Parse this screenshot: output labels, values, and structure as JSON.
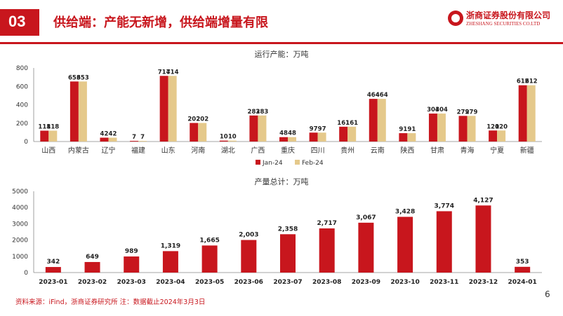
{
  "header": {
    "section_number": "03",
    "title": "供给端：产能无新增，供给端增量有限",
    "logo_cn": "浙商证券股份有限公司",
    "logo_en": "ZHESHANG SECURITIES CO.LTD"
  },
  "colors": {
    "red": "#c8161d",
    "tan": "#e5c98b"
  },
  "chart_data": [
    {
      "type": "bar",
      "title": "运行产能：万吨",
      "categories": [
        "山西",
        "内蒙古",
        "辽宁",
        "福建",
        "山东",
        "河南",
        "湖北",
        "广西",
        "重庆",
        "四川",
        "贵州",
        "云南",
        "陕西",
        "甘肃",
        "青海",
        "宁夏",
        "新疆"
      ],
      "series": [
        {
          "name": "Jan-24",
          "color": "#c8161d",
          "values": [
            118,
            653,
            42,
            7,
            714,
            202,
            10,
            283,
            48,
            97,
            161,
            464,
            91,
            304,
            279,
            120,
            612
          ]
        },
        {
          "name": "Feb-24",
          "color": "#e5c98b",
          "values": [
            118,
            653,
            42,
            7,
            714,
            202,
            10,
            283,
            48,
            97,
            161,
            464,
            91,
            304,
            279,
            120,
            612
          ]
        }
      ],
      "ylim": [
        0,
        800
      ],
      "yticks": [
        0,
        200,
        400,
        600,
        800
      ],
      "legend": "bottom",
      "grid": false
    },
    {
      "type": "bar",
      "title": "产量总计：万吨",
      "categories": [
        "2023-01",
        "2023-02",
        "2023-03",
        "2023-04",
        "2023-05",
        "2023-06",
        "2023-07",
        "2023-08",
        "2023-09",
        "2023-10",
        "2023-11",
        "2023-12",
        "2024-01"
      ],
      "values": [
        342,
        649,
        989,
        1319,
        1665,
        2003,
        2358,
        2717,
        3067,
        3428,
        3774,
        4127,
        353
      ],
      "value_labels": [
        "342",
        "649",
        "989",
        "1,319",
        "1,665",
        "2,003",
        "2,358",
        "2,717",
        "3,067",
        "3,428",
        "3,774",
        "4,127",
        "353"
      ],
      "color": "#c8161d",
      "ylim": [
        0,
        5000
      ],
      "yticks": [
        0,
        1000,
        2000,
        3000,
        4000,
        5000
      ],
      "grid": false
    }
  ],
  "footer": {
    "source": "资料来源：iFind，浙商证券研究所 注：数据截止2024年3月3日",
    "page_number": "6"
  }
}
